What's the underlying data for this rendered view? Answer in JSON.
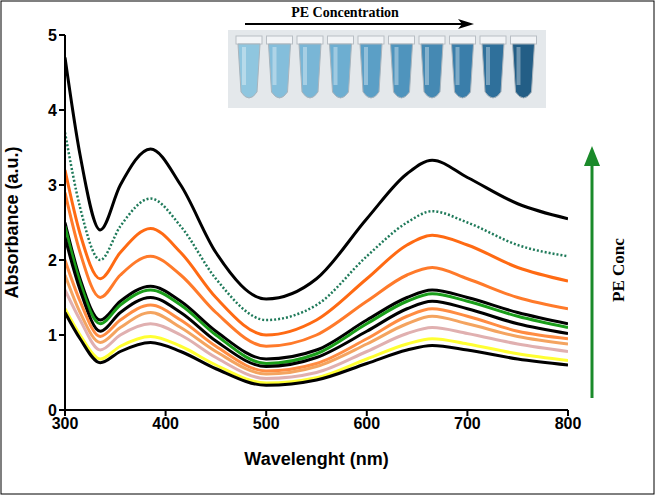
{
  "chart_data": {
    "type": "line",
    "x_label": "Wavelenght (nm)",
    "y_label": "Absorbance (a.u.)",
    "annotations": [
      "PE Concentration",
      "PE Conc"
    ],
    "x": [
      300,
      315,
      335,
      355,
      385,
      415,
      450,
      500,
      550,
      600,
      640,
      665,
      700,
      750,
      800
    ],
    "xlim": [
      300,
      800
    ],
    "xticks": [
      300,
      400,
      500,
      600,
      700,
      800
    ],
    "ylim": [
      0,
      5
    ],
    "yticks": [
      0,
      1,
      2,
      3,
      4,
      5
    ],
    "grid": false,
    "marker": "none",
    "series": [
      {
        "color": "#000000",
        "values": [
          4.7,
          3.4,
          2.4,
          3.0,
          3.48,
          3.0,
          2.1,
          1.48,
          1.75,
          2.55,
          3.15,
          3.33,
          3.1,
          2.75,
          2.55
        ]
      },
      {
        "color": "#1f7a5a",
        "line_style": "dotted",
        "values": [
          3.7,
          2.7,
          2.0,
          2.45,
          2.82,
          2.45,
          1.75,
          1.2,
          1.4,
          2.05,
          2.5,
          2.65,
          2.5,
          2.2,
          2.05
        ]
      },
      {
        "color": "#ff6a13",
        "values": [
          3.2,
          2.35,
          1.75,
          2.1,
          2.42,
          2.1,
          1.5,
          1.0,
          1.2,
          1.75,
          2.2,
          2.33,
          2.2,
          1.9,
          1.72
        ]
      },
      {
        "color": "#ff7a2a",
        "values": [
          2.9,
          2.1,
          1.5,
          1.8,
          2.05,
          1.8,
          1.3,
          0.85,
          1.0,
          1.45,
          1.8,
          1.9,
          1.75,
          1.5,
          1.35
        ]
      },
      {
        "color": "#000000",
        "values": [
          2.5,
          1.75,
          1.2,
          1.45,
          1.65,
          1.45,
          1.05,
          0.68,
          0.8,
          1.2,
          1.5,
          1.6,
          1.5,
          1.3,
          1.15
        ]
      },
      {
        "color": "#1a9e1a",
        "values": [
          2.45,
          1.7,
          1.15,
          1.4,
          1.6,
          1.4,
          1.0,
          0.62,
          0.75,
          1.15,
          1.45,
          1.55,
          1.45,
          1.25,
          1.1
        ]
      },
      {
        "color": "#000000",
        "values": [
          2.3,
          1.6,
          1.05,
          1.3,
          1.5,
          1.3,
          0.92,
          0.58,
          0.7,
          1.05,
          1.35,
          1.45,
          1.35,
          1.15,
          1.02
        ]
      },
      {
        "color": "#ff8c42",
        "values": [
          2.0,
          1.45,
          0.98,
          1.2,
          1.4,
          1.2,
          0.85,
          0.52,
          0.62,
          0.95,
          1.25,
          1.35,
          1.25,
          1.05,
          0.95
        ]
      },
      {
        "color": "#f4a460",
        "values": [
          1.8,
          1.3,
          0.9,
          1.1,
          1.3,
          1.1,
          0.78,
          0.48,
          0.58,
          0.88,
          1.15,
          1.25,
          1.15,
          0.98,
          0.88
        ]
      },
      {
        "color": "#e0b0b0",
        "values": [
          1.6,
          1.2,
          0.8,
          1.0,
          1.15,
          1.0,
          0.7,
          0.42,
          0.5,
          0.78,
          1.02,
          1.1,
          1.02,
          0.88,
          0.78
        ]
      },
      {
        "color": "#ffff33",
        "values": [
          1.35,
          1.0,
          0.68,
          0.85,
          0.98,
          0.85,
          0.6,
          0.36,
          0.43,
          0.68,
          0.88,
          0.95,
          0.88,
          0.75,
          0.66
        ]
      },
      {
        "color": "#000000",
        "values": [
          1.3,
          0.95,
          0.63,
          0.78,
          0.9,
          0.78,
          0.55,
          0.33,
          0.4,
          0.62,
          0.8,
          0.86,
          0.8,
          0.68,
          0.6
        ]
      }
    ]
  }
}
